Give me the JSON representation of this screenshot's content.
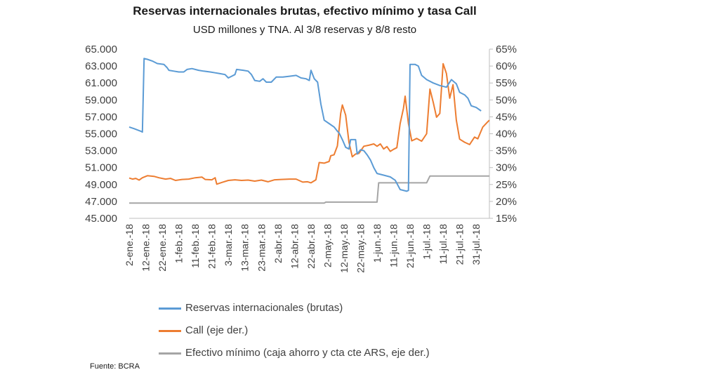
{
  "chart_data": {
    "type": "line",
    "title": "Reservas internacionales brutas, efectivo mínimo y tasa Call",
    "subtitle": "USD millones y TNA. Al 3/8 reservas y 8/8 resto",
    "source": "Fuente: BCRA",
    "x_tick_labels": [
      "2-ene.-18",
      "12-ene.-18",
      "22-ene.-18",
      "1-feb.-18",
      "11-feb.-18",
      "21-feb.-18",
      "3-mar.-18",
      "13-mar.-18",
      "23-mar.-18",
      "2-abr.-18",
      "12-abr.-18",
      "22-abr.-18",
      "2-may.-18",
      "12-may.-18",
      "22-may.-18",
      "1-jun.-18",
      "11-jun.-18",
      "21-jun.-18",
      "1-jul.-18",
      "11-jul.-18",
      "21-jul.-18",
      "31-jul.-18"
    ],
    "x_range": [
      "2018-01-02",
      "2018-08-08"
    ],
    "left_axis": {
      "ylim": [
        45000,
        65000
      ],
      "ticks": [
        "45.000",
        "47.000",
        "49.000",
        "51.000",
        "53.000",
        "55.000",
        "57.000",
        "59.000",
        "61.000",
        "63.000",
        "65.000"
      ]
    },
    "right_axis": {
      "ylim": [
        15,
        65
      ],
      "ticks": [
        "15%",
        "20%",
        "25%",
        "30%",
        "35%",
        "40%",
        "45%",
        "50%",
        "55%",
        "60%",
        "65%"
      ]
    },
    "grid": false,
    "legend_position": "bottom",
    "series": [
      {
        "name": "Reservas internacionales (brutas)",
        "axis": "left",
        "color": "#5B9BD5",
        "points": [
          [
            "2018-01-02",
            55800
          ],
          [
            "2018-01-05",
            55600
          ],
          [
            "2018-01-09",
            55300
          ],
          [
            "2018-01-10",
            55200
          ],
          [
            "2018-01-11",
            63900
          ],
          [
            "2018-01-13",
            63800
          ],
          [
            "2018-01-16",
            63600
          ],
          [
            "2018-01-19",
            63300
          ],
          [
            "2018-01-23",
            63200
          ],
          [
            "2018-01-25",
            62800
          ],
          [
            "2018-01-26",
            62500
          ],
          [
            "2018-01-29",
            62400
          ],
          [
            "2018-02-01",
            62300
          ],
          [
            "2018-02-04",
            62300
          ],
          [
            "2018-02-06",
            62600
          ],
          [
            "2018-02-09",
            62700
          ],
          [
            "2018-02-13",
            62500
          ],
          [
            "2018-02-16",
            62400
          ],
          [
            "2018-02-20",
            62300
          ],
          [
            "2018-02-23",
            62200
          ],
          [
            "2018-02-26",
            62100
          ],
          [
            "2018-03-01",
            62000
          ],
          [
            "2018-03-03",
            61600
          ],
          [
            "2018-03-05",
            61800
          ],
          [
            "2018-03-07",
            62000
          ],
          [
            "2018-03-08",
            62600
          ],
          [
            "2018-03-12",
            62500
          ],
          [
            "2018-03-15",
            62400
          ],
          [
            "2018-03-17",
            62000
          ],
          [
            "2018-03-19",
            61300
          ],
          [
            "2018-03-22",
            61200
          ],
          [
            "2018-03-24",
            61500
          ],
          [
            "2018-03-26",
            61100
          ],
          [
            "2018-03-29",
            61100
          ],
          [
            "2018-04-01",
            61700
          ],
          [
            "2018-04-05",
            61700
          ],
          [
            "2018-04-09",
            61800
          ],
          [
            "2018-04-13",
            61900
          ],
          [
            "2018-04-16",
            61600
          ],
          [
            "2018-04-19",
            61500
          ],
          [
            "2018-04-21",
            61300
          ],
          [
            "2018-04-22",
            62500
          ],
          [
            "2018-04-24",
            61500
          ],
          [
            "2018-04-26",
            61100
          ],
          [
            "2018-04-28",
            58500
          ],
          [
            "2018-04-30",
            56600
          ],
          [
            "2018-05-03",
            56200
          ],
          [
            "2018-05-06",
            55800
          ],
          [
            "2018-05-08",
            55300
          ],
          [
            "2018-05-09",
            55100
          ],
          [
            "2018-05-11",
            54300
          ],
          [
            "2018-05-13",
            53400
          ],
          [
            "2018-05-15",
            53200
          ],
          [
            "2018-05-16",
            54300
          ],
          [
            "2018-05-19",
            54300
          ],
          [
            "2018-05-20",
            52600
          ],
          [
            "2018-05-22",
            53100
          ],
          [
            "2018-05-24",
            53000
          ],
          [
            "2018-05-26",
            52500
          ],
          [
            "2018-05-28",
            51900
          ],
          [
            "2018-05-30",
            51000
          ],
          [
            "2018-06-01",
            50300
          ],
          [
            "2018-06-05",
            50100
          ],
          [
            "2018-06-09",
            49900
          ],
          [
            "2018-06-12",
            49500
          ],
          [
            "2018-06-15",
            48400
          ],
          [
            "2018-06-19",
            48200
          ],
          [
            "2018-06-20",
            48300
          ],
          [
            "2018-06-21",
            63200
          ],
          [
            "2018-06-24",
            63200
          ],
          [
            "2018-06-26",
            63000
          ],
          [
            "2018-06-28",
            61900
          ],
          [
            "2018-07-01",
            61400
          ],
          [
            "2018-07-05",
            61000
          ],
          [
            "2018-07-09",
            60700
          ],
          [
            "2018-07-13",
            60500
          ],
          [
            "2018-07-16",
            61400
          ],
          [
            "2018-07-19",
            60900
          ],
          [
            "2018-07-21",
            59900
          ],
          [
            "2018-07-24",
            59600
          ],
          [
            "2018-07-26",
            59200
          ],
          [
            "2018-07-28",
            58300
          ],
          [
            "2018-07-31",
            58100
          ],
          [
            "2018-08-03",
            57700
          ]
        ]
      },
      {
        "name": "Call (eje der.)",
        "axis": "right",
        "color": "#ED7D31",
        "points": [
          [
            "2018-01-02",
            26.9
          ],
          [
            "2018-01-04",
            26.6
          ],
          [
            "2018-01-06",
            26.8
          ],
          [
            "2018-01-08",
            26.3
          ],
          [
            "2018-01-10",
            27.0
          ],
          [
            "2018-01-13",
            27.6
          ],
          [
            "2018-01-17",
            27.4
          ],
          [
            "2018-01-20",
            27.0
          ],
          [
            "2018-01-24",
            26.6
          ],
          [
            "2018-01-27",
            26.8
          ],
          [
            "2018-01-30",
            26.2
          ],
          [
            "2018-02-03",
            26.5
          ],
          [
            "2018-02-07",
            26.6
          ],
          [
            "2018-02-11",
            27.0
          ],
          [
            "2018-02-15",
            27.2
          ],
          [
            "2018-02-17",
            26.5
          ],
          [
            "2018-02-21",
            26.4
          ],
          [
            "2018-02-23",
            27.0
          ],
          [
            "2018-02-24",
            25.1
          ],
          [
            "2018-02-27",
            25.6
          ],
          [
            "2018-03-03",
            26.2
          ],
          [
            "2018-03-07",
            26.4
          ],
          [
            "2018-03-11",
            26.2
          ],
          [
            "2018-03-15",
            26.3
          ],
          [
            "2018-03-19",
            26.0
          ],
          [
            "2018-03-23",
            26.3
          ],
          [
            "2018-03-27",
            25.8
          ],
          [
            "2018-03-31",
            26.4
          ],
          [
            "2018-04-04",
            26.5
          ],
          [
            "2018-04-09",
            26.6
          ],
          [
            "2018-04-13",
            26.6
          ],
          [
            "2018-04-17",
            25.7
          ],
          [
            "2018-04-20",
            25.8
          ],
          [
            "2018-04-22",
            25.5
          ],
          [
            "2018-04-25",
            26.4
          ],
          [
            "2018-04-27",
            31.5
          ],
          [
            "2018-04-30",
            31.3
          ],
          [
            "2018-05-03",
            31.8
          ],
          [
            "2018-05-04",
            33.5
          ],
          [
            "2018-05-06",
            33.8
          ],
          [
            "2018-05-08",
            36.4
          ],
          [
            "2018-05-10",
            46.0
          ],
          [
            "2018-05-11",
            48.5
          ],
          [
            "2018-05-13",
            45.5
          ],
          [
            "2018-05-15",
            37.5
          ],
          [
            "2018-05-17",
            33.2
          ],
          [
            "2018-05-19",
            34.0
          ],
          [
            "2018-05-21",
            34.2
          ],
          [
            "2018-05-24",
            36.3
          ],
          [
            "2018-05-27",
            36.6
          ],
          [
            "2018-05-30",
            37.0
          ],
          [
            "2018-06-01",
            36.3
          ],
          [
            "2018-06-03",
            37.0
          ],
          [
            "2018-06-05",
            35.5
          ],
          [
            "2018-06-07",
            36.2
          ],
          [
            "2018-06-09",
            34.8
          ],
          [
            "2018-06-11",
            35.4
          ],
          [
            "2018-06-13",
            35.9
          ],
          [
            "2018-06-15",
            43.0
          ],
          [
            "2018-06-17",
            47.5
          ],
          [
            "2018-06-18",
            51.1
          ],
          [
            "2018-06-20",
            43.0
          ],
          [
            "2018-06-22",
            37.9
          ],
          [
            "2018-06-25",
            38.6
          ],
          [
            "2018-06-28",
            37.8
          ],
          [
            "2018-07-01",
            40.0
          ],
          [
            "2018-07-03",
            53.2
          ],
          [
            "2018-07-05",
            49.3
          ],
          [
            "2018-07-07",
            44.9
          ],
          [
            "2018-07-09",
            46.0
          ],
          [
            "2018-07-11",
            60.7
          ],
          [
            "2018-07-13",
            57.8
          ],
          [
            "2018-07-15",
            50.5
          ],
          [
            "2018-07-17",
            54.5
          ],
          [
            "2018-07-19",
            44.0
          ],
          [
            "2018-07-21",
            38.4
          ],
          [
            "2018-07-24",
            37.5
          ],
          [
            "2018-07-27",
            36.8
          ],
          [
            "2018-07-30",
            39.0
          ],
          [
            "2018-08-01",
            38.5
          ],
          [
            "2018-08-04",
            42.0
          ],
          [
            "2018-08-07",
            43.5
          ],
          [
            "2018-08-08",
            44.0
          ]
        ]
      },
      {
        "name": "Efectivo mínimo (caja ahorro y cta cte ARS, eje der.)",
        "axis": "right",
        "color": "#A5A5A5",
        "points": [
          [
            "2018-01-02",
            19.5
          ],
          [
            "2018-04-30",
            19.5
          ],
          [
            "2018-05-01",
            19.8
          ],
          [
            "2018-06-01",
            19.8
          ],
          [
            "2018-06-02",
            25.5
          ],
          [
            "2018-07-01",
            25.5
          ],
          [
            "2018-07-03",
            27.5
          ],
          [
            "2018-08-08",
            27.5
          ]
        ]
      }
    ]
  }
}
